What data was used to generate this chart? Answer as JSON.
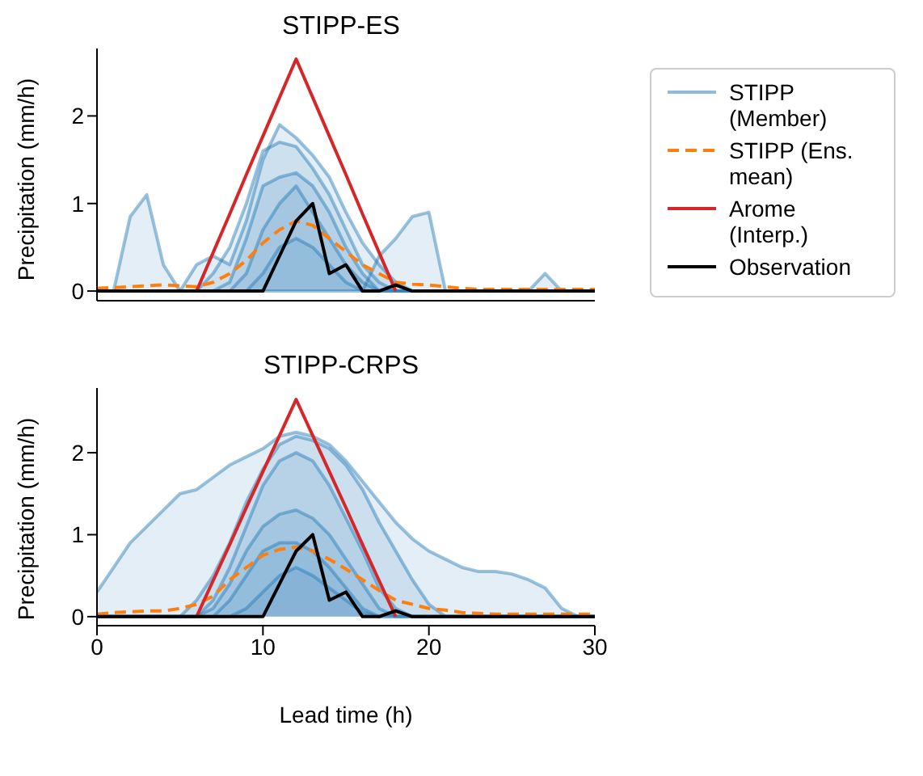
{
  "chart_data": [
    {
      "type": "area",
      "title": "STIPP-ES",
      "ylabel": "Precipitation (mm/h)",
      "x": [
        0,
        1,
        2,
        3,
        4,
        5,
        6,
        7,
        8,
        9,
        10,
        11,
        12,
        13,
        14,
        15,
        16,
        17,
        18,
        19,
        20,
        21,
        22,
        23,
        24,
        25,
        26,
        27,
        28,
        29,
        30
      ],
      "xlim": [
        0,
        30
      ],
      "xticks": [
        0,
        10,
        20,
        30
      ],
      "ylim": [
        -0.11,
        2.77
      ],
      "yticks": [
        0,
        1,
        2
      ],
      "tick_labels": "y",
      "legend": "right",
      "grid": false,
      "series": [
        {
          "name": "STIPP (Member)",
          "color": "#1f77b4",
          "values": [
            0,
            0,
            0.85,
            1.1,
            0.3,
            0,
            0,
            0,
            0,
            0,
            0,
            0,
            0,
            0,
            0,
            0,
            0,
            0.4,
            0.6,
            0.85,
            0.9,
            0,
            0,
            0,
            0,
            0,
            0,
            0.2,
            0,
            0,
            0
          ]
        },
        {
          "color": "#1f76b4",
          "values": [
            0,
            0,
            0,
            0,
            0,
            0,
            0.3,
            0.4,
            0.3,
            0.8,
            1.5,
            1.9,
            1.75,
            1.55,
            1.3,
            0.9,
            0.55,
            0.3,
            0.1,
            0,
            0,
            0,
            0,
            0,
            0,
            0,
            0,
            0,
            0,
            0,
            0
          ]
        },
        {
          "color": "#1f78b4",
          "values": [
            0,
            0,
            0,
            0,
            0,
            0,
            0,
            0.2,
            0.5,
            1.0,
            1.6,
            1.7,
            1.65,
            1.4,
            1.1,
            0.7,
            0.3,
            0.1,
            0,
            0,
            0,
            0,
            0,
            0,
            0,
            0,
            0,
            0,
            0,
            0,
            0
          ]
        },
        {
          "color": "#1e77b4",
          "values": [
            0,
            0,
            0,
            0,
            0,
            0,
            0,
            0,
            0.1,
            0.6,
            1.2,
            1.3,
            1.35,
            1.2,
            0.9,
            0.5,
            0.2,
            0,
            0,
            0,
            0,
            0,
            0,
            0,
            0,
            0,
            0,
            0,
            0,
            0,
            0
          ]
        },
        {
          "color": "#2077b4",
          "values": [
            0,
            0,
            0,
            0,
            0,
            0,
            0,
            0,
            0,
            0.2,
            0.7,
            1.0,
            1.2,
            0.9,
            0.6,
            0.3,
            0.1,
            0,
            0,
            0,
            0,
            0,
            0,
            0,
            0,
            0,
            0,
            0,
            0,
            0,
            0
          ]
        },
        {
          "color": "#1f77b5",
          "values": [
            0,
            0,
            0,
            0,
            0,
            0,
            0,
            0,
            0,
            0,
            0.2,
            0.5,
            0.6,
            0.5,
            0.3,
            0.1,
            0,
            0,
            0,
            0,
            0,
            0,
            0,
            0,
            0,
            0,
            0,
            0,
            0,
            0,
            0
          ]
        },
        {
          "name": "STIPP (Ens. mean)",
          "type": "line",
          "line_style": "dashed",
          "color": "#ff7f0e",
          "values": [
            0.03,
            0.04,
            0.05,
            0.06,
            0.07,
            0.06,
            0.05,
            0.1,
            0.2,
            0.35,
            0.55,
            0.7,
            0.8,
            0.75,
            0.6,
            0.45,
            0.3,
            0.2,
            0.1,
            0.08,
            0.07,
            0.05,
            0.03,
            0.02,
            0.02,
            0.02,
            0.02,
            0.02,
            0.02,
            0.02,
            0.02
          ]
        },
        {
          "name": "Arome (Interp.)",
          "type": "line",
          "color": "#d62728",
          "values": [
            null,
            null,
            null,
            null,
            null,
            null,
            0,
            0.44,
            0.88,
            1.33,
            1.77,
            2.21,
            2.65,
            2.21,
            1.77,
            1.33,
            0.88,
            0.44,
            0,
            null,
            null,
            null,
            null,
            null,
            null,
            null,
            null,
            null,
            null,
            null,
            null
          ]
        },
        {
          "name": "Observation",
          "type": "line",
          "color": "#000000",
          "values": [
            0,
            0,
            0,
            0,
            0,
            0,
            0,
            0,
            0,
            0,
            0,
            0.4,
            0.8,
            1.0,
            0.2,
            0.3,
            0,
            0,
            0.07,
            0,
            0,
            0,
            0,
            0,
            0,
            0,
            0,
            0,
            0,
            0,
            0
          ]
        }
      ]
    },
    {
      "type": "area",
      "title": "STIPP-CRPS",
      "xlabel": "Lead time (h)",
      "ylabel": "Precipitation (mm/h)",
      "x": [
        0,
        1,
        2,
        3,
        4,
        5,
        6,
        7,
        8,
        9,
        10,
        11,
        12,
        13,
        14,
        15,
        16,
        17,
        18,
        19,
        20,
        21,
        22,
        23,
        24,
        25,
        26,
        27,
        28,
        29,
        30
      ],
      "xlim": [
        0,
        30
      ],
      "xticks": [
        0,
        10,
        20,
        30
      ],
      "ylim": [
        -0.11,
        2.79
      ],
      "yticks": [
        0,
        1,
        2
      ],
      "grid": false,
      "series": [
        {
          "color": "#1f77b4",
          "values": [
            0.3,
            0.6,
            0.9,
            1.1,
            1.3,
            1.5,
            1.55,
            1.7,
            1.85,
            1.95,
            2.05,
            2.2,
            2.25,
            2.2,
            2.1,
            1.9,
            1.65,
            1.4,
            1.15,
            0.95,
            0.8,
            0.7,
            0.6,
            0.55,
            0.55,
            0.52,
            0.45,
            0.35,
            0.1,
            0,
            0
          ]
        },
        {
          "color": "#1f76b4",
          "values": [
            0,
            0,
            0,
            0,
            0,
            0,
            0.2,
            0.5,
            0.9,
            1.4,
            1.8,
            2.1,
            2.2,
            2.15,
            2.05,
            1.85,
            1.55,
            1.15,
            0.8,
            0.45,
            0.15,
            0,
            0,
            0,
            0,
            0,
            0,
            0,
            0,
            0,
            0
          ]
        },
        {
          "color": "#1f78b4",
          "values": [
            0,
            0,
            0,
            0,
            0,
            0,
            0,
            0.2,
            0.6,
            1.1,
            1.6,
            1.9,
            2.0,
            1.9,
            1.6,
            1.2,
            0.8,
            0.35,
            0.1,
            0,
            0,
            0,
            0,
            0,
            0,
            0,
            0,
            0,
            0,
            0,
            0
          ]
        },
        {
          "color": "#1e77b4",
          "values": [
            0,
            0,
            0,
            0,
            0,
            0,
            0,
            0.1,
            0.4,
            0.8,
            1.1,
            1.25,
            1.3,
            1.2,
            1.0,
            0.7,
            0.4,
            0.1,
            0,
            0,
            0,
            0,
            0,
            0,
            0,
            0,
            0,
            0,
            0,
            0,
            0
          ]
        },
        {
          "color": "#2077b4",
          "values": [
            0,
            0,
            0,
            0,
            0,
            0,
            0,
            0,
            0.2,
            0.5,
            0.8,
            0.9,
            0.9,
            0.8,
            0.6,
            0.35,
            0.1,
            0,
            0,
            0,
            0,
            0,
            0,
            0,
            0,
            0,
            0,
            0,
            0,
            0,
            0
          ]
        },
        {
          "color": "#1f77b5",
          "values": [
            0,
            0,
            0,
            0,
            0,
            0,
            0,
            0,
            0,
            0.1,
            0.3,
            0.5,
            0.6,
            0.5,
            0.35,
            0.2,
            0.05,
            0,
            0,
            0,
            0,
            0,
            0,
            0,
            0,
            0,
            0,
            0,
            0,
            0,
            0
          ]
        },
        {
          "type": "line",
          "line_style": "dashed",
          "color": "#ff7f0e",
          "values": [
            0.03,
            0.05,
            0.06,
            0.07,
            0.07,
            0.1,
            0.15,
            0.25,
            0.45,
            0.6,
            0.75,
            0.82,
            0.85,
            0.8,
            0.7,
            0.58,
            0.45,
            0.32,
            0.2,
            0.15,
            0.1,
            0.08,
            0.05,
            0.04,
            0.03,
            0.03,
            0.03,
            0.03,
            0.03,
            0.03,
            0.03
          ]
        },
        {
          "type": "line",
          "color": "#d62728",
          "values": [
            null,
            null,
            null,
            null,
            null,
            null,
            0,
            0.44,
            0.88,
            1.33,
            1.77,
            2.21,
            2.65,
            2.21,
            1.77,
            1.33,
            0.88,
            0.44,
            0,
            null,
            null,
            null,
            null,
            null,
            null,
            null,
            null,
            null,
            null,
            null,
            null
          ]
        },
        {
          "type": "line",
          "color": "#000000",
          "values": [
            0,
            0,
            0,
            0,
            0,
            0,
            0,
            0,
            0,
            0,
            0,
            0.4,
            0.8,
            1.0,
            0.2,
            0.3,
            0,
            0,
            0.07,
            0,
            0,
            0,
            0,
            0,
            0,
            0,
            0,
            0,
            0,
            0,
            0
          ]
        }
      ]
    }
  ]
}
